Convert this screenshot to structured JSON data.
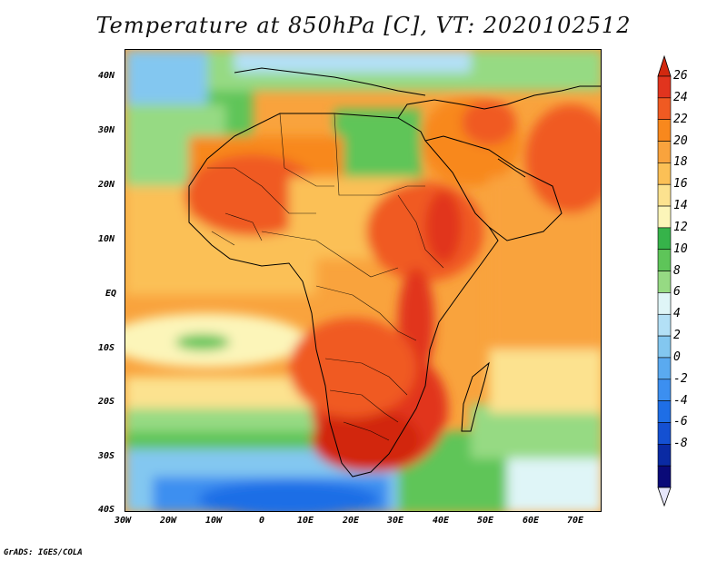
{
  "title": "Temperature at 850hPa [C], VT: 2020102512",
  "footer": "GrADS: IGES/COLA",
  "map": {
    "lat_labels": [
      "40N",
      "30N",
      "20N",
      "10N",
      "EQ",
      "10S",
      "20S",
      "30S",
      "40S"
    ],
    "lon_labels": [
      "30W",
      "20W",
      "10W",
      "0",
      "10E",
      "20E",
      "30E",
      "40E",
      "50E",
      "60E",
      "70E"
    ]
  },
  "colorbar": {
    "levels": [
      "26",
      "24",
      "22",
      "20",
      "18",
      "16",
      "14",
      "12",
      "10",
      "8",
      "6",
      "4",
      "2",
      "0",
      "-2",
      "-4",
      "-6",
      "-8"
    ],
    "colors": [
      "#e1341e",
      "#f05a22",
      "#f8881d",
      "#f9a33d",
      "#fbc056",
      "#fce28f",
      "#fcf5b9",
      "#36b34a",
      "#5ec559",
      "#96da83",
      "#dff5f7",
      "#b3e0f6",
      "#83c7f0",
      "#5aaaf0",
      "#3c8ff0",
      "#1e6ee6",
      "#1450d2",
      "#0a2aa3",
      "#0a0a78"
    ],
    "over_color": "#d2280f",
    "under_color": "#e6e6fa"
  }
}
